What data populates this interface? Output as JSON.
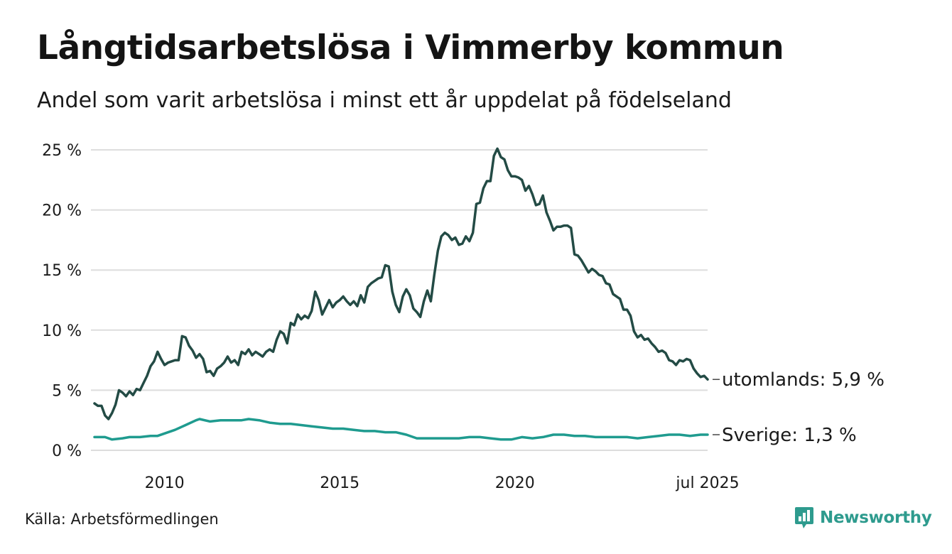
{
  "header": {
    "title": "Långtidsarbetslösa i Vimmerby kommun",
    "subtitle": "Andel som varit arbetslösa i minst ett år uppdelat på födelseland"
  },
  "footer": {
    "source": "Källa: Arbetsförmedlingen",
    "brand": "Newsworthy"
  },
  "colors": {
    "utomlands": "#234b45",
    "sverige": "#1f9b8f",
    "grid": "#dddddd"
  },
  "chart_data": {
    "type": "line",
    "title": "Långtidsarbetslösa i Vimmerby kommun",
    "subtitle": "Andel som varit arbetslösa i minst ett år uppdelat på födelseland",
    "ylim": [
      0,
      25
    ],
    "y_ticks": [
      0,
      5,
      10,
      15,
      20,
      25
    ],
    "y_tick_labels": [
      "0 %",
      "5 %",
      "10 %",
      "15 %",
      "20 %",
      "25 %"
    ],
    "x_ticks": [
      2010,
      2015,
      2020,
      2025.5
    ],
    "x_tick_labels": [
      "2010",
      "2015",
      "2020",
      "jul 2025"
    ],
    "grid": true,
    "legend": "direct labels at line ends",
    "series": [
      {
        "name": "utomlands",
        "end_label": "utomlands: 5,9 %",
        "points": [
          [
            2008.0,
            3.9
          ],
          [
            2008.1,
            3.7
          ],
          [
            2008.2,
            3.7
          ],
          [
            2008.3,
            2.9
          ],
          [
            2008.4,
            2.6
          ],
          [
            2008.5,
            3.1
          ],
          [
            2008.6,
            3.8
          ],
          [
            2008.7,
            5.0
          ],
          [
            2008.8,
            4.8
          ],
          [
            2008.9,
            4.5
          ],
          [
            2009.0,
            4.9
          ],
          [
            2009.1,
            4.6
          ],
          [
            2009.2,
            5.1
          ],
          [
            2009.3,
            5.0
          ],
          [
            2009.4,
            5.6
          ],
          [
            2009.5,
            6.2
          ],
          [
            2009.6,
            7.0
          ],
          [
            2009.7,
            7.4
          ],
          [
            2009.8,
            8.2
          ],
          [
            2009.9,
            7.6
          ],
          [
            2010.0,
            7.1
          ],
          [
            2010.1,
            7.3
          ],
          [
            2010.2,
            7.4
          ],
          [
            2010.3,
            7.5
          ],
          [
            2010.4,
            7.5
          ],
          [
            2010.5,
            9.5
          ],
          [
            2010.6,
            9.4
          ],
          [
            2010.7,
            8.7
          ],
          [
            2010.8,
            8.3
          ],
          [
            2010.9,
            7.7
          ],
          [
            2011.0,
            8.0
          ],
          [
            2011.1,
            7.6
          ],
          [
            2011.2,
            6.5
          ],
          [
            2011.3,
            6.6
          ],
          [
            2011.4,
            6.2
          ],
          [
            2011.5,
            6.8
          ],
          [
            2011.6,
            7.0
          ],
          [
            2011.7,
            7.3
          ],
          [
            2011.8,
            7.8
          ],
          [
            2011.9,
            7.3
          ],
          [
            2012.0,
            7.5
          ],
          [
            2012.1,
            7.1
          ],
          [
            2012.2,
            8.2
          ],
          [
            2012.3,
            8.0
          ],
          [
            2012.4,
            8.4
          ],
          [
            2012.5,
            7.9
          ],
          [
            2012.6,
            8.2
          ],
          [
            2012.7,
            8.0
          ],
          [
            2012.8,
            7.8
          ],
          [
            2012.9,
            8.2
          ],
          [
            2013.0,
            8.4
          ],
          [
            2013.1,
            8.2
          ],
          [
            2013.2,
            9.2
          ],
          [
            2013.3,
            9.9
          ],
          [
            2013.4,
            9.7
          ],
          [
            2013.5,
            8.9
          ],
          [
            2013.6,
            10.6
          ],
          [
            2013.7,
            10.4
          ],
          [
            2013.8,
            11.3
          ],
          [
            2013.9,
            10.9
          ],
          [
            2014.0,
            11.2
          ],
          [
            2014.1,
            11.0
          ],
          [
            2014.2,
            11.6
          ],
          [
            2014.3,
            13.2
          ],
          [
            2014.4,
            12.5
          ],
          [
            2014.5,
            11.3
          ],
          [
            2014.6,
            11.9
          ],
          [
            2014.7,
            12.5
          ],
          [
            2014.8,
            11.9
          ],
          [
            2014.9,
            12.3
          ],
          [
            2015.0,
            12.5
          ],
          [
            2015.1,
            12.8
          ],
          [
            2015.2,
            12.4
          ],
          [
            2015.3,
            12.1
          ],
          [
            2015.4,
            12.4
          ],
          [
            2015.5,
            12.0
          ],
          [
            2015.6,
            12.9
          ],
          [
            2015.7,
            12.3
          ],
          [
            2015.8,
            13.6
          ],
          [
            2015.9,
            13.9
          ],
          [
            2016.0,
            14.1
          ],
          [
            2016.1,
            14.3
          ],
          [
            2016.2,
            14.4
          ],
          [
            2016.3,
            15.4
          ],
          [
            2016.4,
            15.3
          ],
          [
            2016.5,
            13.2
          ],
          [
            2016.6,
            12.1
          ],
          [
            2016.7,
            11.5
          ],
          [
            2016.8,
            12.8
          ],
          [
            2016.9,
            13.4
          ],
          [
            2017.0,
            12.9
          ],
          [
            2017.1,
            11.8
          ],
          [
            2017.2,
            11.5
          ],
          [
            2017.3,
            11.1
          ],
          [
            2017.4,
            12.4
          ],
          [
            2017.5,
            13.3
          ],
          [
            2017.6,
            12.4
          ],
          [
            2017.7,
            14.6
          ],
          [
            2017.8,
            16.6
          ],
          [
            2017.9,
            17.8
          ],
          [
            2018.0,
            18.1
          ],
          [
            2018.1,
            17.9
          ],
          [
            2018.2,
            17.5
          ],
          [
            2018.3,
            17.7
          ],
          [
            2018.4,
            17.1
          ],
          [
            2018.5,
            17.2
          ],
          [
            2018.6,
            17.8
          ],
          [
            2018.7,
            17.4
          ],
          [
            2018.8,
            18.1
          ],
          [
            2018.9,
            20.5
          ],
          [
            2019.0,
            20.6
          ],
          [
            2019.1,
            21.8
          ],
          [
            2019.2,
            22.4
          ],
          [
            2019.3,
            22.4
          ],
          [
            2019.4,
            24.5
          ],
          [
            2019.5,
            25.1
          ],
          [
            2019.6,
            24.4
          ],
          [
            2019.7,
            24.2
          ],
          [
            2019.8,
            23.3
          ],
          [
            2019.9,
            22.8
          ],
          [
            2020.0,
            22.8
          ],
          [
            2020.1,
            22.7
          ],
          [
            2020.2,
            22.5
          ],
          [
            2020.3,
            21.6
          ],
          [
            2020.4,
            22.0
          ],
          [
            2020.5,
            21.3
          ],
          [
            2020.6,
            20.4
          ],
          [
            2020.7,
            20.5
          ],
          [
            2020.8,
            21.2
          ],
          [
            2020.9,
            19.8
          ],
          [
            2021.0,
            19.1
          ],
          [
            2021.1,
            18.3
          ],
          [
            2021.2,
            18.6
          ],
          [
            2021.3,
            18.6
          ],
          [
            2021.4,
            18.7
          ],
          [
            2021.5,
            18.7
          ],
          [
            2021.6,
            18.5
          ],
          [
            2021.7,
            16.3
          ],
          [
            2021.8,
            16.2
          ],
          [
            2021.9,
            15.8
          ],
          [
            2022.0,
            15.3
          ],
          [
            2022.1,
            14.8
          ],
          [
            2022.2,
            15.1
          ],
          [
            2022.3,
            14.9
          ],
          [
            2022.4,
            14.6
          ],
          [
            2022.5,
            14.5
          ],
          [
            2022.6,
            13.9
          ],
          [
            2022.7,
            13.8
          ],
          [
            2022.8,
            13.0
          ],
          [
            2022.9,
            12.8
          ],
          [
            2023.0,
            12.6
          ],
          [
            2023.1,
            11.7
          ],
          [
            2023.2,
            11.7
          ],
          [
            2023.3,
            11.2
          ],
          [
            2023.4,
            9.9
          ],
          [
            2023.5,
            9.4
          ],
          [
            2023.6,
            9.6
          ],
          [
            2023.7,
            9.2
          ],
          [
            2023.8,
            9.3
          ],
          [
            2023.9,
            8.9
          ],
          [
            2024.0,
            8.6
          ],
          [
            2024.1,
            8.2
          ],
          [
            2024.2,
            8.3
          ],
          [
            2024.3,
            8.1
          ],
          [
            2024.4,
            7.5
          ],
          [
            2024.5,
            7.4
          ],
          [
            2024.6,
            7.1
          ],
          [
            2024.7,
            7.5
          ],
          [
            2024.8,
            7.4
          ],
          [
            2024.9,
            7.6
          ],
          [
            2025.0,
            7.5
          ],
          [
            2025.1,
            6.8
          ],
          [
            2025.2,
            6.4
          ],
          [
            2025.3,
            6.1
          ],
          [
            2025.4,
            6.2
          ],
          [
            2025.5,
            5.9
          ]
        ]
      },
      {
        "name": "Sverige",
        "end_label": "Sverige: 1,3 %",
        "points": [
          [
            2008.0,
            1.1
          ],
          [
            2008.3,
            1.1
          ],
          [
            2008.5,
            0.9
          ],
          [
            2008.8,
            1.0
          ],
          [
            2009.0,
            1.1
          ],
          [
            2009.3,
            1.1
          ],
          [
            2009.6,
            1.2
          ],
          [
            2009.8,
            1.2
          ],
          [
            2010.0,
            1.4
          ],
          [
            2010.3,
            1.7
          ],
          [
            2010.6,
            2.1
          ],
          [
            2010.9,
            2.5
          ],
          [
            2011.0,
            2.6
          ],
          [
            2011.3,
            2.4
          ],
          [
            2011.6,
            2.5
          ],
          [
            2011.9,
            2.5
          ],
          [
            2012.2,
            2.5
          ],
          [
            2012.4,
            2.6
          ],
          [
            2012.7,
            2.5
          ],
          [
            2013.0,
            2.3
          ],
          [
            2013.3,
            2.2
          ],
          [
            2013.6,
            2.2
          ],
          [
            2013.9,
            2.1
          ],
          [
            2014.2,
            2.0
          ],
          [
            2014.5,
            1.9
          ],
          [
            2014.8,
            1.8
          ],
          [
            2015.1,
            1.8
          ],
          [
            2015.4,
            1.7
          ],
          [
            2015.7,
            1.6
          ],
          [
            2016.0,
            1.6
          ],
          [
            2016.3,
            1.5
          ],
          [
            2016.6,
            1.5
          ],
          [
            2016.9,
            1.3
          ],
          [
            2017.2,
            1.0
          ],
          [
            2017.5,
            1.0
          ],
          [
            2017.8,
            1.0
          ],
          [
            2018.1,
            1.0
          ],
          [
            2018.4,
            1.0
          ],
          [
            2018.7,
            1.1
          ],
          [
            2019.0,
            1.1
          ],
          [
            2019.3,
            1.0
          ],
          [
            2019.6,
            0.9
          ],
          [
            2019.9,
            0.9
          ],
          [
            2020.2,
            1.1
          ],
          [
            2020.5,
            1.0
          ],
          [
            2020.8,
            1.1
          ],
          [
            2021.1,
            1.3
          ],
          [
            2021.4,
            1.3
          ],
          [
            2021.7,
            1.2
          ],
          [
            2022.0,
            1.2
          ],
          [
            2022.3,
            1.1
          ],
          [
            2022.6,
            1.1
          ],
          [
            2022.9,
            1.1
          ],
          [
            2023.2,
            1.1
          ],
          [
            2023.5,
            1.0
          ],
          [
            2023.8,
            1.1
          ],
          [
            2024.1,
            1.2
          ],
          [
            2024.4,
            1.3
          ],
          [
            2024.7,
            1.3
          ],
          [
            2025.0,
            1.2
          ],
          [
            2025.3,
            1.3
          ],
          [
            2025.5,
            1.3
          ]
        ]
      }
    ]
  }
}
